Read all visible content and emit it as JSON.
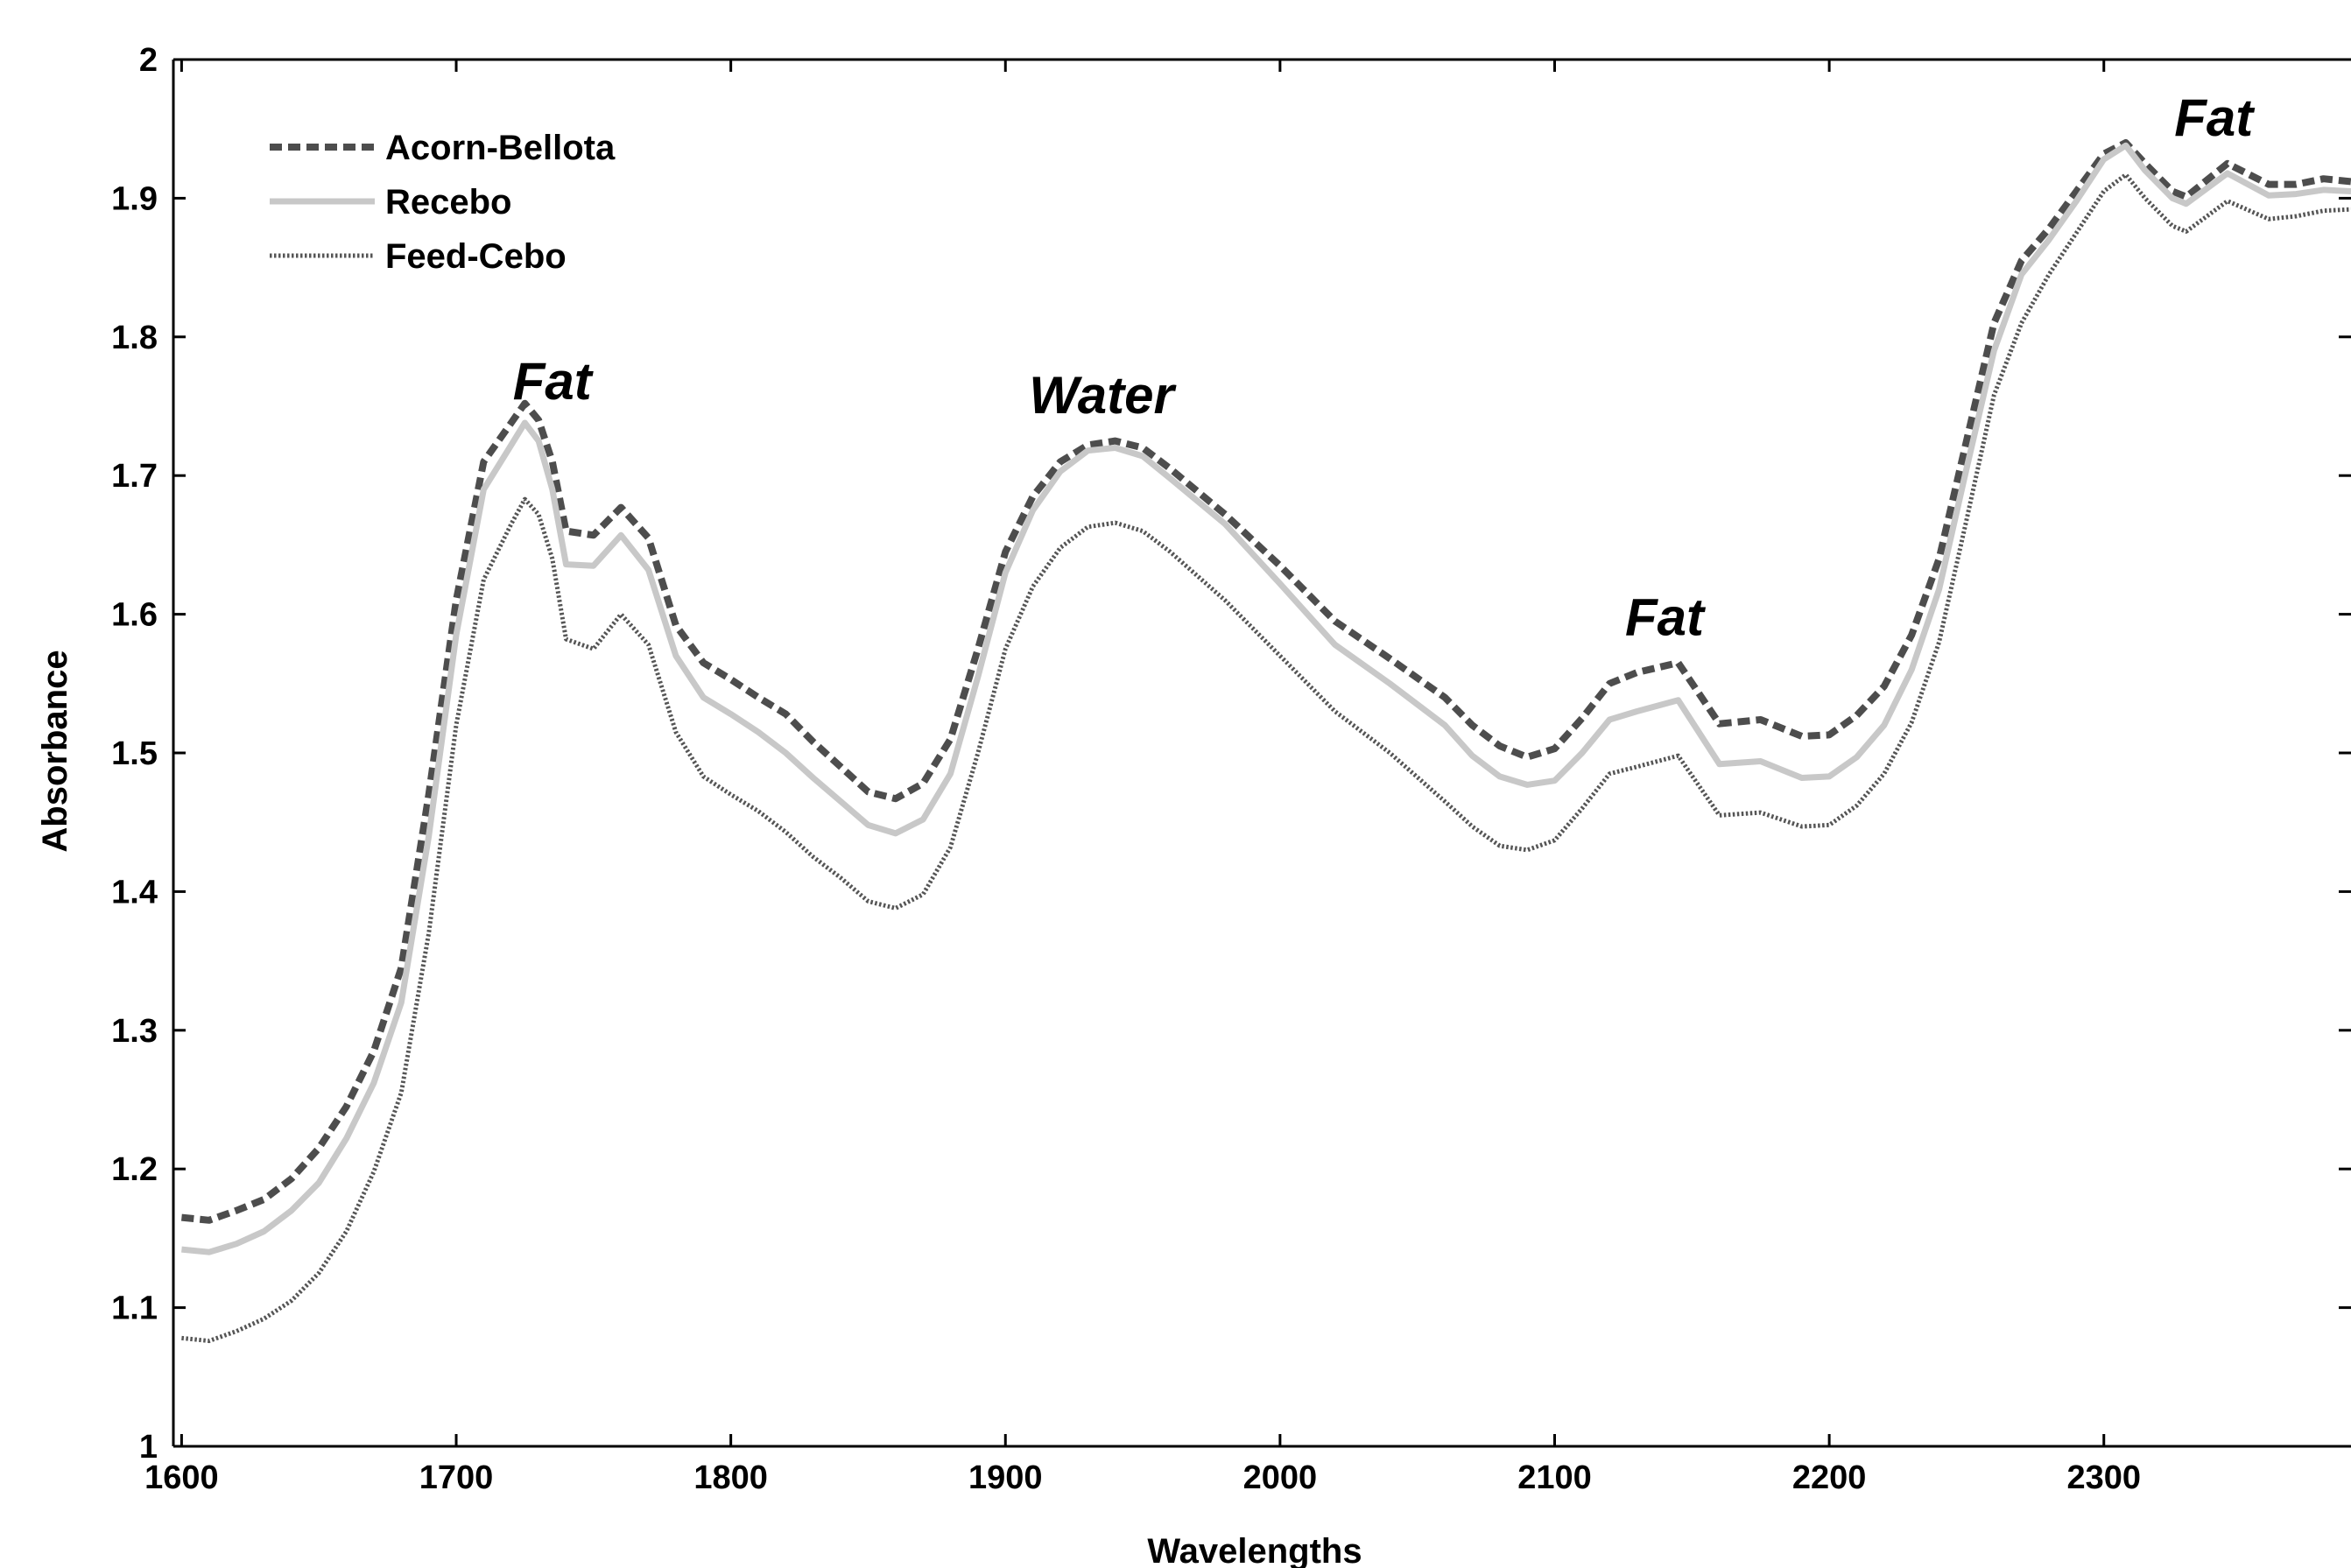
{
  "chart_data": {
    "type": "line",
    "xlabel": "Wavelengths",
    "ylabel": "Absorbance",
    "xlim": [
      1597,
      2390
    ],
    "ylim": [
      1,
      2
    ],
    "xticks": [
      1600,
      1700,
      1800,
      1900,
      2000,
      2100,
      2200,
      2300
    ],
    "yticks": [
      1,
      1.1,
      1.2,
      1.3,
      1.4,
      1.5,
      1.6,
      1.7,
      1.8,
      1.9,
      2
    ],
    "xtick_labels": [
      "1600",
      "1700",
      "1800",
      "1900",
      "2000",
      "2100",
      "2200",
      "2300"
    ],
    "ytick_labels": [
      "1",
      "1.1",
      "1.2",
      "1.3",
      "1.4",
      "1.5",
      "1.6",
      "1.7",
      "1.8",
      "1.9",
      "2"
    ],
    "grid": false,
    "legend_position": "top-left",
    "annotations": [
      {
        "text": "Fat",
        "x": 1735,
        "y": 1.755
      },
      {
        "text": "Water",
        "x": 1935,
        "y": 1.745
      },
      {
        "text": "Fat",
        "x": 2140,
        "y": 1.585
      },
      {
        "text": "Fat",
        "x": 2340,
        "y": 1.945
      }
    ],
    "series": [
      {
        "name": "Acorn-Bellota",
        "color": "#4d4d4d",
        "style": "dashed",
        "points": [
          [
            1600,
            1.165
          ],
          [
            1610,
            1.163
          ],
          [
            1620,
            1.17
          ],
          [
            1630,
            1.178
          ],
          [
            1640,
            1.193
          ],
          [
            1650,
            1.215
          ],
          [
            1660,
            1.245
          ],
          [
            1670,
            1.285
          ],
          [
            1680,
            1.345
          ],
          [
            1690,
            1.47
          ],
          [
            1700,
            1.61
          ],
          [
            1710,
            1.71
          ],
          [
            1720,
            1.738
          ],
          [
            1725,
            1.752
          ],
          [
            1730,
            1.74
          ],
          [
            1735,
            1.71
          ],
          [
            1740,
            1.66
          ],
          [
            1750,
            1.657
          ],
          [
            1760,
            1.677
          ],
          [
            1770,
            1.655
          ],
          [
            1780,
            1.592
          ],
          [
            1790,
            1.565
          ],
          [
            1800,
            1.553
          ],
          [
            1810,
            1.54
          ],
          [
            1820,
            1.528
          ],
          [
            1830,
            1.508
          ],
          [
            1840,
            1.49
          ],
          [
            1850,
            1.472
          ],
          [
            1860,
            1.467
          ],
          [
            1870,
            1.478
          ],
          [
            1880,
            1.51
          ],
          [
            1890,
            1.575
          ],
          [
            1900,
            1.645
          ],
          [
            1910,
            1.685
          ],
          [
            1920,
            1.71
          ],
          [
            1930,
            1.722
          ],
          [
            1940,
            1.725
          ],
          [
            1950,
            1.72
          ],
          [
            1960,
            1.705
          ],
          [
            1980,
            1.672
          ],
          [
            2000,
            1.635
          ],
          [
            2020,
            1.595
          ],
          [
            2040,
            1.568
          ],
          [
            2060,
            1.54
          ],
          [
            2070,
            1.52
          ],
          [
            2080,
            1.505
          ],
          [
            2090,
            1.497
          ],
          [
            2100,
            1.503
          ],
          [
            2110,
            1.525
          ],
          [
            2120,
            1.55
          ],
          [
            2130,
            1.558
          ],
          [
            2145,
            1.565
          ],
          [
            2160,
            1.521
          ],
          [
            2175,
            1.524
          ],
          [
            2190,
            1.512
          ],
          [
            2200,
            1.513
          ],
          [
            2210,
            1.527
          ],
          [
            2220,
            1.548
          ],
          [
            2230,
            1.585
          ],
          [
            2240,
            1.64
          ],
          [
            2250,
            1.725
          ],
          [
            2260,
            1.81
          ],
          [
            2270,
            1.855
          ],
          [
            2280,
            1.878
          ],
          [
            2290,
            1.905
          ],
          [
            2300,
            1.932
          ],
          [
            2308,
            1.94
          ],
          [
            2315,
            1.925
          ],
          [
            2325,
            1.905
          ],
          [
            2330,
            1.901
          ],
          [
            2345,
            1.925
          ],
          [
            2360,
            1.91
          ],
          [
            2370,
            1.91
          ],
          [
            2380,
            1.914
          ],
          [
            2390,
            1.912
          ]
        ]
      },
      {
        "name": "Recebo",
        "color": "#c8c8c8",
        "style": "solid",
        "points": [
          [
            1600,
            1.142
          ],
          [
            1610,
            1.14
          ],
          [
            1620,
            1.146
          ],
          [
            1630,
            1.155
          ],
          [
            1640,
            1.17
          ],
          [
            1650,
            1.19
          ],
          [
            1660,
            1.222
          ],
          [
            1670,
            1.262
          ],
          [
            1680,
            1.32
          ],
          [
            1690,
            1.44
          ],
          [
            1700,
            1.585
          ],
          [
            1710,
            1.69
          ],
          [
            1720,
            1.722
          ],
          [
            1725,
            1.738
          ],
          [
            1730,
            1.725
          ],
          [
            1735,
            1.69
          ],
          [
            1740,
            1.636
          ],
          [
            1750,
            1.635
          ],
          [
            1760,
            1.657
          ],
          [
            1770,
            1.632
          ],
          [
            1780,
            1.57
          ],
          [
            1790,
            1.54
          ],
          [
            1800,
            1.528
          ],
          [
            1810,
            1.515
          ],
          [
            1820,
            1.5
          ],
          [
            1830,
            1.482
          ],
          [
            1840,
            1.465
          ],
          [
            1850,
            1.448
          ],
          [
            1860,
            1.442
          ],
          [
            1870,
            1.452
          ],
          [
            1880,
            1.485
          ],
          [
            1890,
            1.555
          ],
          [
            1900,
            1.63
          ],
          [
            1910,
            1.675
          ],
          [
            1920,
            1.703
          ],
          [
            1930,
            1.718
          ],
          [
            1940,
            1.72
          ],
          [
            1950,
            1.714
          ],
          [
            1960,
            1.698
          ],
          [
            1980,
            1.665
          ],
          [
            2000,
            1.622
          ],
          [
            2020,
            1.578
          ],
          [
            2040,
            1.55
          ],
          [
            2060,
            1.52
          ],
          [
            2070,
            1.498
          ],
          [
            2080,
            1.483
          ],
          [
            2090,
            1.477
          ],
          [
            2100,
            1.48
          ],
          [
            2110,
            1.5
          ],
          [
            2120,
            1.524
          ],
          [
            2130,
            1.53
          ],
          [
            2145,
            1.538
          ],
          [
            2160,
            1.492
          ],
          [
            2175,
            1.494
          ],
          [
            2190,
            1.482
          ],
          [
            2200,
            1.483
          ],
          [
            2210,
            1.497
          ],
          [
            2220,
            1.52
          ],
          [
            2230,
            1.56
          ],
          [
            2240,
            1.618
          ],
          [
            2250,
            1.705
          ],
          [
            2260,
            1.79
          ],
          [
            2270,
            1.845
          ],
          [
            2280,
            1.87
          ],
          [
            2290,
            1.898
          ],
          [
            2300,
            1.928
          ],
          [
            2308,
            1.938
          ],
          [
            2315,
            1.92
          ],
          [
            2325,
            1.9
          ],
          [
            2330,
            1.896
          ],
          [
            2345,
            1.918
          ],
          [
            2360,
            1.902
          ],
          [
            2370,
            1.903
          ],
          [
            2380,
            1.906
          ],
          [
            2390,
            1.905
          ]
        ]
      },
      {
        "name": "Feed-Cebo",
        "color": "#555555",
        "style": "dotted",
        "points": [
          [
            1600,
            1.078
          ],
          [
            1610,
            1.076
          ],
          [
            1620,
            1.083
          ],
          [
            1630,
            1.092
          ],
          [
            1640,
            1.105
          ],
          [
            1650,
            1.125
          ],
          [
            1660,
            1.155
          ],
          [
            1670,
            1.198
          ],
          [
            1680,
            1.255
          ],
          [
            1690,
            1.37
          ],
          [
            1700,
            1.52
          ],
          [
            1710,
            1.625
          ],
          [
            1720,
            1.665
          ],
          [
            1725,
            1.683
          ],
          [
            1730,
            1.672
          ],
          [
            1735,
            1.64
          ],
          [
            1740,
            1.582
          ],
          [
            1750,
            1.575
          ],
          [
            1760,
            1.6
          ],
          [
            1770,
            1.578
          ],
          [
            1780,
            1.515
          ],
          [
            1790,
            1.483
          ],
          [
            1800,
            1.47
          ],
          [
            1810,
            1.458
          ],
          [
            1820,
            1.443
          ],
          [
            1830,
            1.425
          ],
          [
            1840,
            1.41
          ],
          [
            1850,
            1.393
          ],
          [
            1860,
            1.388
          ],
          [
            1870,
            1.398
          ],
          [
            1880,
            1.432
          ],
          [
            1890,
            1.5
          ],
          [
            1900,
            1.575
          ],
          [
            1910,
            1.62
          ],
          [
            1920,
            1.648
          ],
          [
            1930,
            1.663
          ],
          [
            1940,
            1.666
          ],
          [
            1950,
            1.66
          ],
          [
            1960,
            1.645
          ],
          [
            1980,
            1.61
          ],
          [
            2000,
            1.57
          ],
          [
            2020,
            1.53
          ],
          [
            2040,
            1.5
          ],
          [
            2060,
            1.465
          ],
          [
            2070,
            1.447
          ],
          [
            2080,
            1.433
          ],
          [
            2090,
            1.43
          ],
          [
            2100,
            1.437
          ],
          [
            2110,
            1.46
          ],
          [
            2120,
            1.485
          ],
          [
            2130,
            1.49
          ],
          [
            2145,
            1.498
          ],
          [
            2160,
            1.455
          ],
          [
            2175,
            1.457
          ],
          [
            2190,
            1.447
          ],
          [
            2200,
            1.448
          ],
          [
            2210,
            1.462
          ],
          [
            2220,
            1.485
          ],
          [
            2230,
            1.522
          ],
          [
            2240,
            1.58
          ],
          [
            2250,
            1.668
          ],
          [
            2260,
            1.758
          ],
          [
            2270,
            1.81
          ],
          [
            2280,
            1.845
          ],
          [
            2290,
            1.875
          ],
          [
            2300,
            1.905
          ],
          [
            2308,
            1.917
          ],
          [
            2315,
            1.9
          ],
          [
            2325,
            1.88
          ],
          [
            2330,
            1.876
          ],
          [
            2345,
            1.898
          ],
          [
            2360,
            1.885
          ],
          [
            2370,
            1.887
          ],
          [
            2380,
            1.891
          ],
          [
            2390,
            1.892
          ]
        ]
      }
    ]
  }
}
